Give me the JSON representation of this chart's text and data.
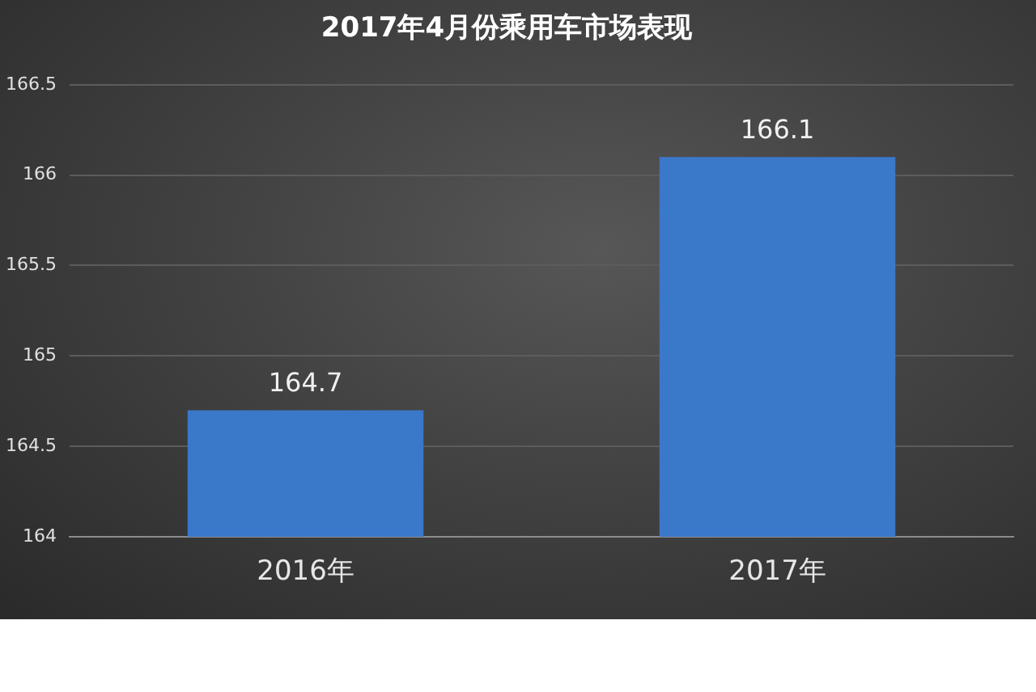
{
  "chart_data": {
    "type": "bar",
    "title": "2017年4月份乘用车市场表现",
    "categories": [
      "2016年",
      "2017年"
    ],
    "values": [
      164.7,
      166.1
    ],
    "color": "#3a78c9",
    "ylim": [
      164,
      166.5
    ],
    "yticks": [
      164,
      164.5,
      165,
      165.5,
      166,
      166.5
    ],
    "grid": "y",
    "data_labels": true
  }
}
